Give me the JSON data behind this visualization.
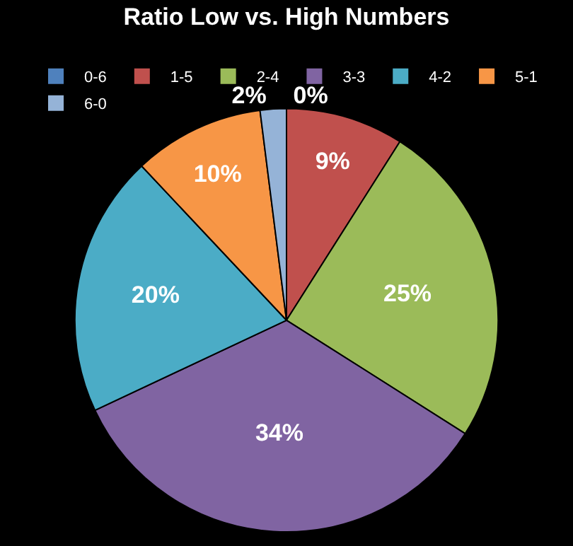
{
  "chart_data": {
    "type": "pie",
    "title": "Ratio Low vs. High Numbers",
    "categories": [
      "0-6",
      "1-5",
      "2-4",
      "3-3",
      "4-2",
      "5-1",
      "6-0"
    ],
    "values": [
      0,
      9,
      25,
      34,
      20,
      10,
      2
    ],
    "value_labels": [
      "0%",
      "9%",
      "25%",
      "34%",
      "20%",
      "10%",
      "2%"
    ],
    "colors": [
      "#4f81bd",
      "#c0504d",
      "#9bbb59",
      "#8064a2",
      "#4bacc6",
      "#f79646",
      "#95b3d7"
    ],
    "legend": "top"
  }
}
